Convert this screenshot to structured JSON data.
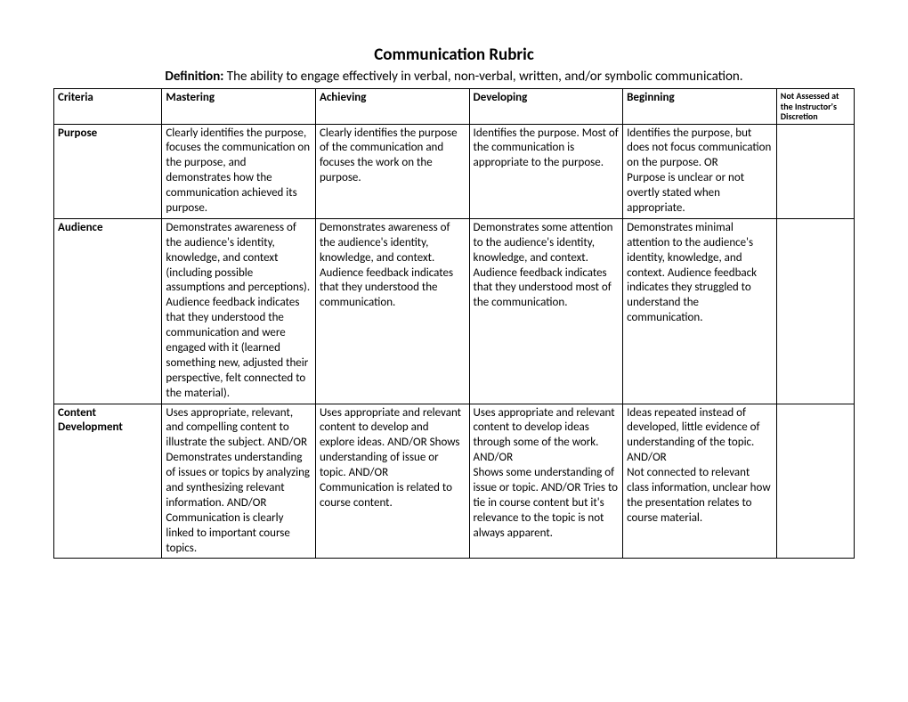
{
  "title": "Communication Rubric",
  "definition_label": "Definition:",
  "definition_text": " The ability to engage effectively in verbal, non-verbal, written, and/or symbolic communication.",
  "columns": {
    "criteria": "Criteria",
    "mastering": "Mastering",
    "achieving": "Achieving",
    "developing": "Developing",
    "beginning": "Beginning",
    "not_assessed": "Not Assessed at the Instructor's Discretion"
  },
  "rows": [
    {
      "criteria": "Purpose",
      "mastering": "Clearly identifies the purpose, focuses the communication on the purpose, and demonstrates how the communication achieved its purpose.",
      "achieving": "Clearly identifies the purpose of the communication and focuses the work on the purpose.",
      "developing": "Identifies the purpose. Most of the communication is appropriate to the purpose.",
      "beginning": "Identifies the purpose, but does not focus communication on the purpose. OR\nPurpose is unclear or not overtly stated when appropriate.",
      "not_assessed": ""
    },
    {
      "criteria": "Audience",
      "mastering": "Demonstrates awareness of the audience's identity, knowledge, and context (including possible assumptions and perceptions).\nAudience feedback indicates that they understood the communication and were engaged with it (learned something new, adjusted their perspective, felt connected to the material).",
      "achieving": "Demonstrates awareness of the audience's identity, knowledge, and context. Audience feedback indicates that they understood the communication.",
      "developing": "Demonstrates some attention to the audience's identity, knowledge, and context. Audience feedback indicates that they understood most of the communication.",
      "beginning": "Demonstrates minimal attention to the audience's identity, knowledge, and context. Audience feedback indicates they struggled to understand the communication.",
      "not_assessed": ""
    },
    {
      "criteria": "Content Development",
      "mastering": "Uses appropriate, relevant, and compelling content to illustrate the subject. AND/OR\nDemonstrates understanding of issues or topics by analyzing and synthesizing relevant information. AND/OR Communication is clearly linked to important course topics.",
      "achieving": "Uses appropriate and relevant content to develop and explore ideas. AND/OR Shows understanding of issue or topic. AND/OR Communication is related to course content.",
      "developing": "Uses appropriate and relevant content to develop ideas through some of the work. AND/OR\nShows some understanding of issue or topic. AND/OR Tries to tie in course content but it's relevance to the topic is not always apparent.",
      "beginning": "Ideas repeated instead of developed, little evidence of understanding of the topic. AND/OR\nNot connected to relevant class information, unclear how the presentation relates to course material.",
      "not_assessed": ""
    }
  ]
}
